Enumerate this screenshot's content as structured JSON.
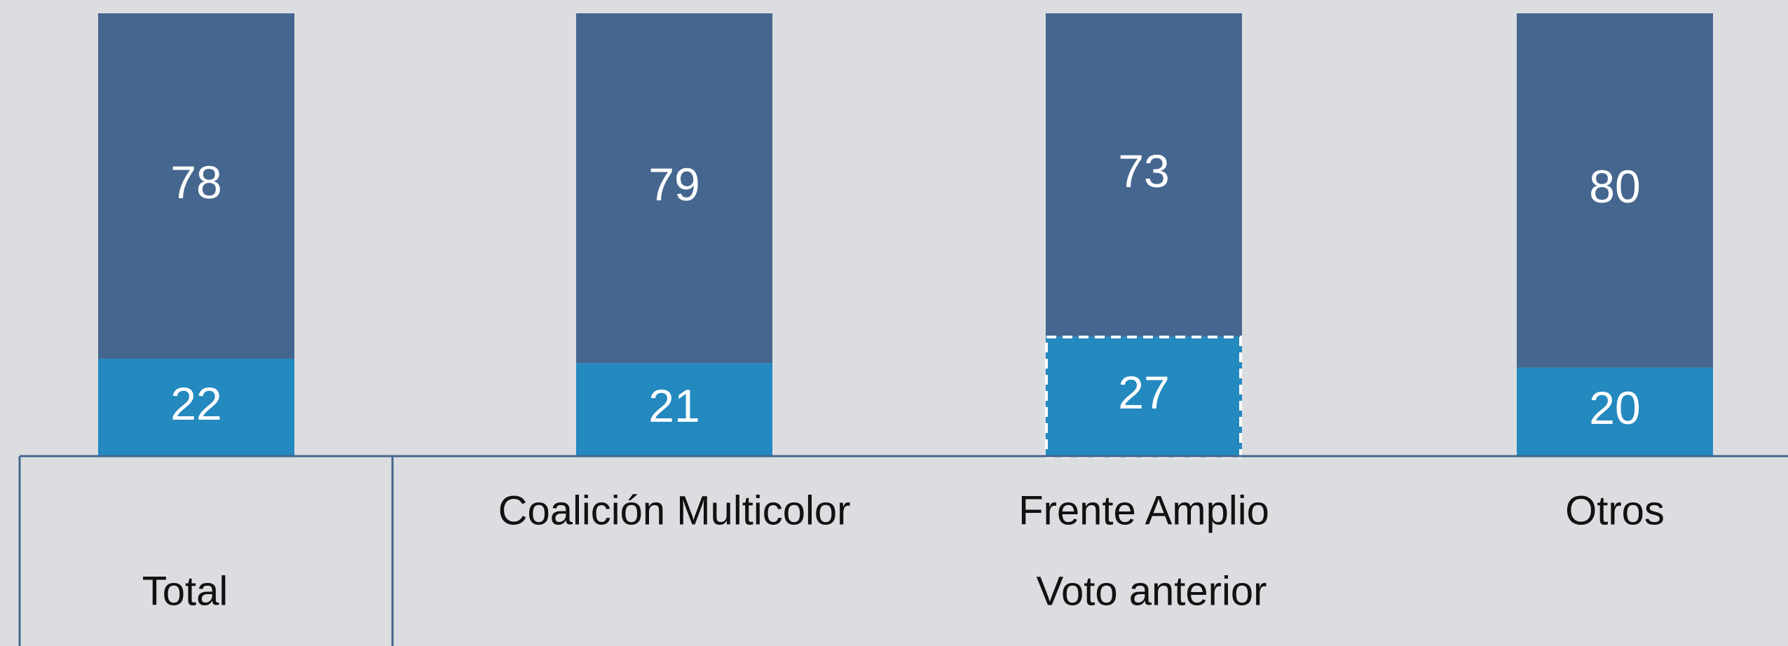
{
  "chart_data": {
    "type": "stacked_bar",
    "categories": [
      "Total",
      "Coalición Multicolor",
      "Frente Amplio",
      "Otros"
    ],
    "group_label": "Voto anterior",
    "series": [
      {
        "color": "#2389bf",
        "values": [
          22,
          21,
          27,
          20
        ]
      },
      {
        "color": "#44668f",
        "values": [
          78,
          79,
          73,
          80
        ]
      }
    ],
    "ylim": [
      0,
      100
    ]
  }
}
